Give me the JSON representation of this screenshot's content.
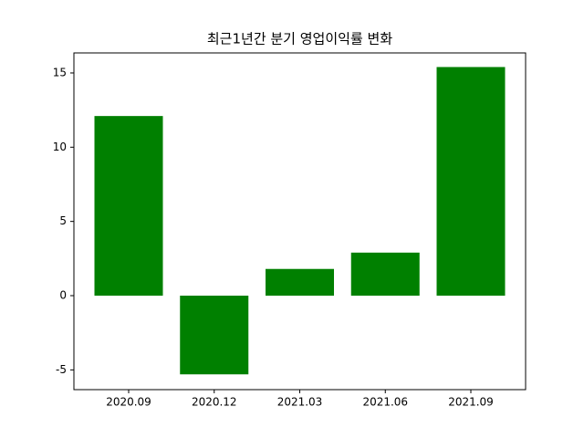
{
  "chart_data": {
    "type": "bar",
    "title": "최근1년간 분기 영업이익률 변화",
    "categories": [
      "2020.09",
      "2020.12",
      "2021.03",
      "2021.06",
      "2021.09"
    ],
    "values": [
      12.1,
      -5.3,
      1.8,
      2.9,
      15.4
    ],
    "color": "#008000",
    "ylim": [
      -6.33,
      16.35
    ],
    "yticks": [
      -5,
      0,
      5,
      10,
      15
    ],
    "grid": false
  }
}
